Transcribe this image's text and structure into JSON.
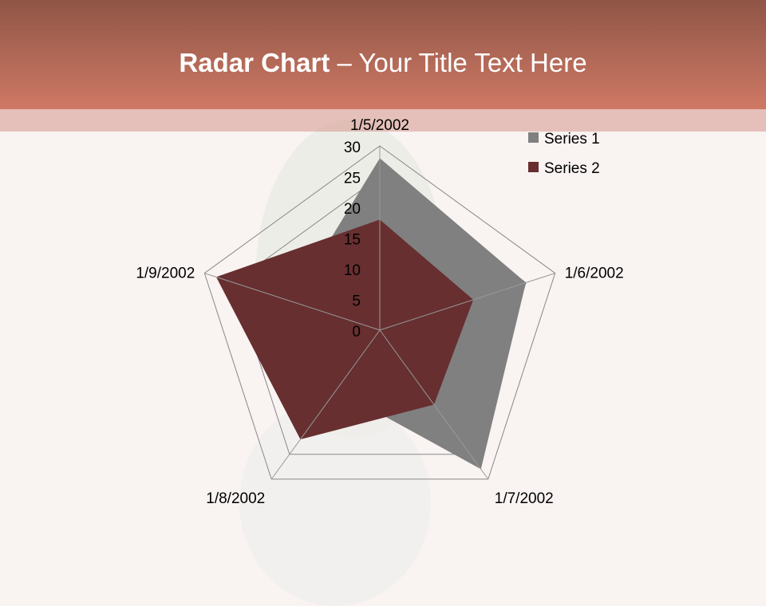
{
  "title": {
    "bold": "Radar Chart",
    "rest": " – Your Title Text Here"
  },
  "chart_data": {
    "type": "radar",
    "categories": [
      "1/5/2002",
      "1/6/2002",
      "1/7/2002",
      "1/8/2002",
      "1/9/2002"
    ],
    "series": [
      {
        "name": "Series 1",
        "values": [
          28,
          25,
          28,
          12,
          15
        ],
        "color": "#808080"
      },
      {
        "name": "Series 2",
        "values": [
          18,
          16,
          15,
          22,
          28
        ],
        "color": "#672f30"
      }
    ],
    "rlim": [
      0,
      30
    ],
    "ticks": [
      "0",
      "5",
      "10",
      "15",
      "20",
      "25",
      "30"
    ],
    "grid": true,
    "legend": "top-right"
  }
}
